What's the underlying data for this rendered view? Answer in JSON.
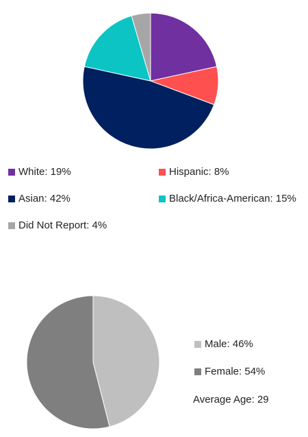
{
  "chart_data": [
    {
      "type": "pie",
      "slices": [
        {
          "label": "White: 19%",
          "value": 19,
          "color": "#7030A0"
        },
        {
          "label": "Hispanic: 8%",
          "value": 8,
          "color": "#FF5050"
        },
        {
          "label": "Asian: 42%",
          "value": 42,
          "color": "#002060"
        },
        {
          "label": "Black/Africa-American: 15%",
          "value": 15,
          "color": "#0CC4C4"
        },
        {
          "label": "Did Not Report: 4%",
          "value": 4,
          "color": "#A6A6A6"
        }
      ],
      "legend_position": "bottom"
    },
    {
      "type": "pie",
      "slices": [
        {
          "label": "Male: 46%",
          "value": 46,
          "color": "#BFBFBF"
        },
        {
          "label": "Female: 54%",
          "value": 54,
          "color": "#7F7F7F"
        }
      ],
      "legend_position": "right",
      "annotation": "Average Age: 29"
    }
  ]
}
